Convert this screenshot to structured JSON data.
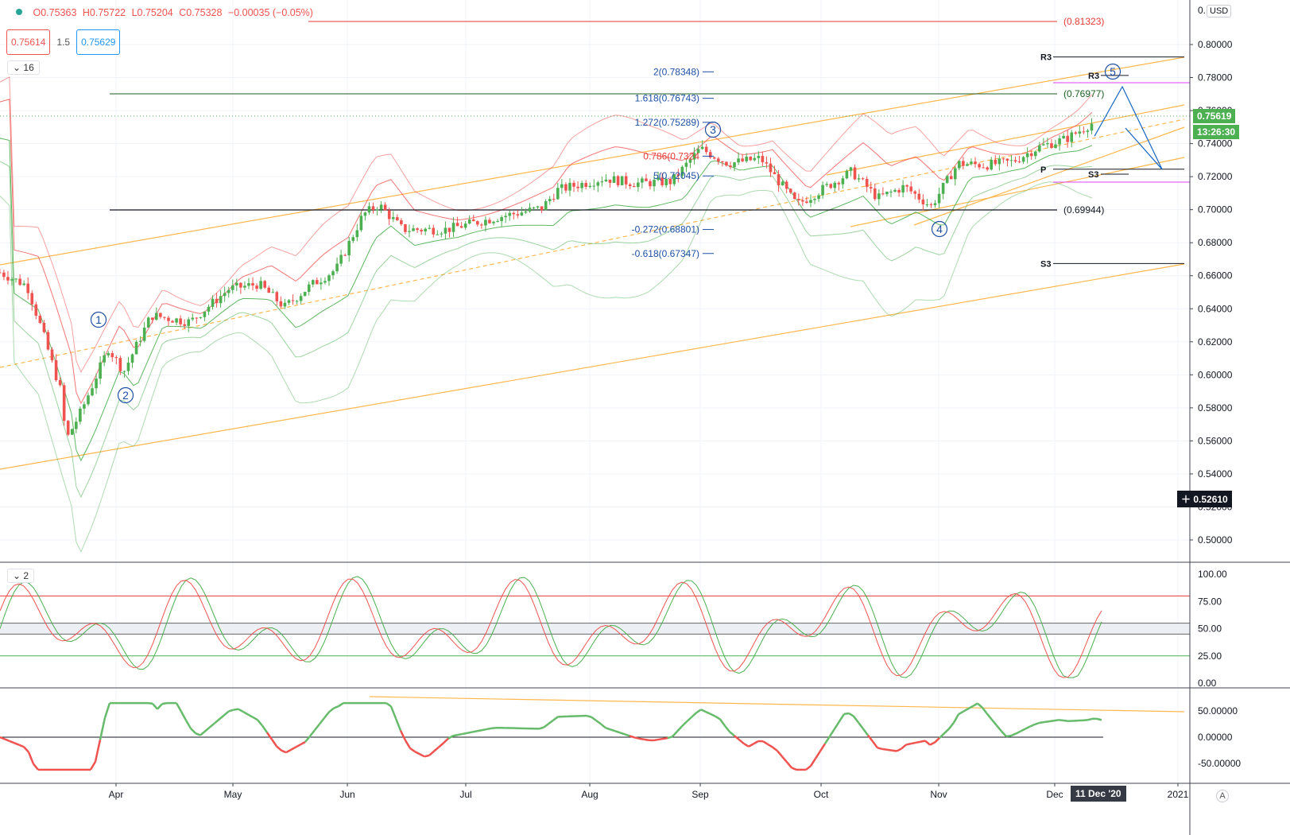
{
  "header": {
    "open_label": "O0.75363",
    "high_label": "H0.75722",
    "low_label": "L0.75204",
    "close_label": "C0.75328",
    "change_label": "−0.00035 (−0.05%)",
    "bid": "0.75614",
    "spread": "1.5",
    "ask": "0.75629",
    "indicator_count": "16",
    "sub_indicator_count": "2",
    "currency": "USD",
    "auto_label": "A"
  },
  "colors": {
    "up": "#4caf50",
    "down": "#ef5350",
    "bollinger_upper": "#ef5350",
    "bollinger_lower": "#4caf50",
    "channel": "#ffb74d",
    "fib": "#1e4fa3",
    "wave": "#1e4fa3"
  },
  "price_axis": {
    "ticks": [
      "0.80000",
      "0.78000",
      "0.76000",
      "0.74000",
      "0.72000",
      "0.70000",
      "0.68000",
      "0.66000",
      "0.64000",
      "0.62000",
      "0.60000",
      "0.58000",
      "0.56000",
      "0.54000",
      "0.52000",
      "0.50000"
    ],
    "top_tick": "0.",
    "last_price": "0.75619",
    "countdown": "13:26:30",
    "crosshair_price": "0.52610"
  },
  "time_axis": {
    "labels": [
      "Apr",
      "May",
      "Jun",
      "Jul",
      "Aug",
      "Sep",
      "Oct",
      "Nov",
      "Dec",
      "2021"
    ],
    "crosshair_date": "11 Dec '20"
  },
  "levels": {
    "red_line_label": "(0.81323)",
    "green_line_label": "(0.76977)",
    "black_line_label": "(0.69944)",
    "pivots": [
      {
        "label": "R3",
        "value": 0.7925
      },
      {
        "label": "R3",
        "value": 0.7813
      },
      {
        "label": "P",
        "value": 0.7245
      },
      {
        "label": "S3",
        "value": 0.7215
      },
      {
        "label": "S3",
        "value": 0.6674
      }
    ]
  },
  "fib_levels": [
    {
      "label": "2(0.78348)",
      "value": 0.78348
    },
    {
      "label": "1.618(0.76743)",
      "value": 0.76743
    },
    {
      "label": "1.272(0.75289)",
      "value": 0.75289
    },
    {
      "label": "0.786(0.7324",
      "value": 0.7324
    },
    {
      "label": "5(0.72045)",
      "value": 0.72045
    },
    {
      "label": "-0.272(0.68801)",
      "value": 0.68801
    },
    {
      "label": "-0.618(0.67347)",
      "value": 0.67347
    }
  ],
  "waves": [
    "1",
    "2",
    "3",
    "4",
    "5"
  ],
  "oscillator_axis": [
    "100.00",
    "75.00",
    "50.00",
    "25.00",
    "0.00"
  ],
  "momentum_axis": [
    "50.00000",
    "0.00000",
    "-50.00000"
  ],
  "chart_data": {
    "type": "candlestick",
    "symbol_price_range": [
      0.49,
      0.81
    ],
    "daily_close_path": [
      {
        "x": "Mar 02",
        "y": 0.662
      },
      {
        "x": "Mar 09",
        "y": 0.654
      },
      {
        "x": "Mar 13",
        "y": 0.626
      },
      {
        "x": "Mar 18",
        "y": 0.588
      },
      {
        "x": "Mar 19",
        "y": 0.56
      },
      {
        "x": "Mar 23",
        "y": 0.578
      },
      {
        "x": "Mar 30",
        "y": 0.616
      },
      {
        "x": "Apr 03",
        "y": 0.602
      },
      {
        "x": "Apr 10",
        "y": 0.636
      },
      {
        "x": "Apr 20",
        "y": 0.632
      },
      {
        "x": "Apr 30",
        "y": 0.652
      },
      {
        "x": "May 08",
        "y": 0.655
      },
      {
        "x": "May 15",
        "y": 0.641
      },
      {
        "x": "May 22",
        "y": 0.654
      },
      {
        "x": "May 29",
        "y": 0.664
      },
      {
        "x": "Jun 05",
        "y": 0.697
      },
      {
        "x": "Jun 09",
        "y": 0.703
      },
      {
        "x": "Jun 15",
        "y": 0.688
      },
      {
        "x": "Jun 26",
        "y": 0.688
      },
      {
        "x": "Jul 10",
        "y": 0.696
      },
      {
        "x": "Jul 20",
        "y": 0.701
      },
      {
        "x": "Jul 24",
        "y": 0.712
      },
      {
        "x": "Aug 05",
        "y": 0.719
      },
      {
        "x": "Aug 14",
        "y": 0.716
      },
      {
        "x": "Aug 24",
        "y": 0.717
      },
      {
        "x": "Sep 01",
        "y": 0.737
      },
      {
        "x": "Sep 08",
        "y": 0.728
      },
      {
        "x": "Sep 16",
        "y": 0.731
      },
      {
        "x": "Sep 25",
        "y": 0.703
      },
      {
        "x": "Oct 09",
        "y": 0.723
      },
      {
        "x": "Oct 16",
        "y": 0.707
      },
      {
        "x": "Oct 23",
        "y": 0.714
      },
      {
        "x": "Oct 30",
        "y": 0.702
      },
      {
        "x": "Nov 06",
        "y": 0.728
      },
      {
        "x": "Nov 13",
        "y": 0.727
      },
      {
        "x": "Nov 20",
        "y": 0.729
      },
      {
        "x": "Nov 27",
        "y": 0.738
      },
      {
        "x": "Dec 04",
        "y": 0.743
      },
      {
        "x": "Dec 11",
        "y": 0.75328
      }
    ],
    "projection": [
      {
        "x": "Dec 11",
        "y": 0.7445
      },
      {
        "x": "Dec 18",
        "y": 0.7745
      },
      {
        "x": "Dec 28",
        "y": 0.7245
      }
    ]
  }
}
